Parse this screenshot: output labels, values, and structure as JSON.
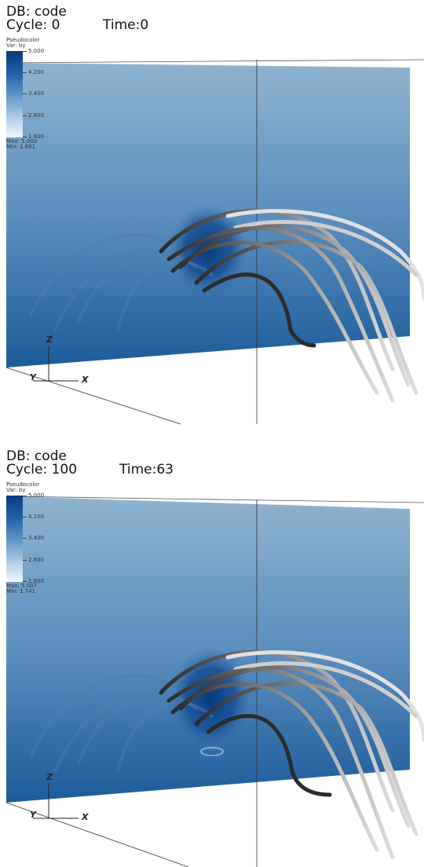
{
  "panels": [
    {
      "db_label": "DB: code",
      "cycle_label": "Cycle: 0",
      "time_label": "Time:0",
      "legend": {
        "title": "Pseudocolor",
        "var": "Var: by",
        "ticks": [
          "5.000",
          "4.200",
          "3.400",
          "2.600",
          "1.800"
        ],
        "max": "Max: 5.000",
        "min": "Min: 1.881"
      },
      "axes": {
        "z": "Z",
        "y": "Y",
        "x": "X"
      }
    },
    {
      "db_label": "DB: code",
      "cycle_label": "Cycle: 100",
      "time_label": "Time:63",
      "legend": {
        "title": "Pseudocolor",
        "var": "Var: by",
        "ticks": [
          "5.000",
          "4.200",
          "3.400",
          "2.600",
          "1.800"
        ],
        "max": "Max: 5.007",
        "min": "Min: 1.741"
      },
      "axes": {
        "z": "Z",
        "y": "Y",
        "x": "X"
      }
    }
  ],
  "colors": {
    "plane_top": "#8fb3cf",
    "plane_bottom": "#1c5b9a",
    "blob": "#0c3f86",
    "tube_dark": "#2a2a2a",
    "tube_light": "#e8e8e8"
  }
}
